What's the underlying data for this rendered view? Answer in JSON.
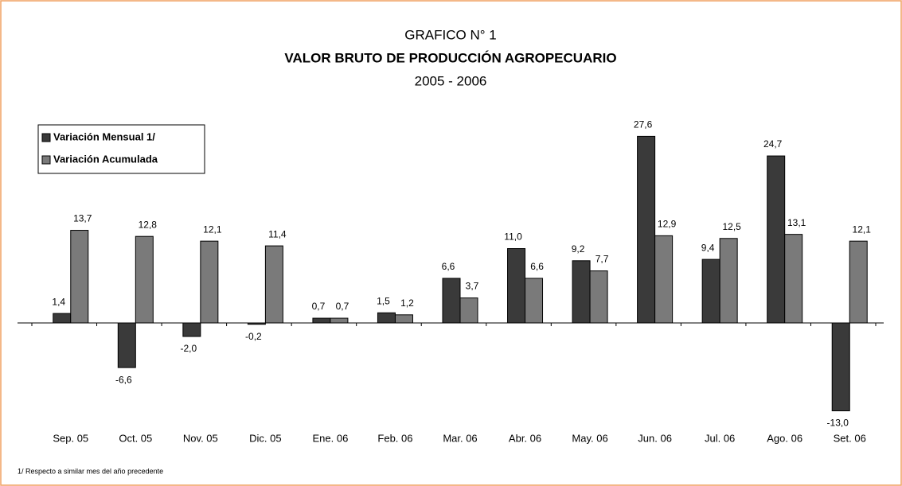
{
  "chart_data": {
    "type": "bar",
    "title": "GRAFICO N° 1",
    "subtitle": "VALOR BRUTO DE PRODUCCIÓN AGROPECUARIO",
    "period": "2005 - 2006",
    "footnote": "1/ Respecto a similar mes del año precedente",
    "categories": [
      "Sep. 05",
      "Oct. 05",
      "Nov. 05",
      "Dic. 05",
      "Ene. 06",
      "Feb. 06",
      "Mar. 06",
      "Abr. 06",
      "May. 06",
      "Jun. 06",
      "Jul. 06",
      "Ago. 06",
      "Set. 06"
    ],
    "series": [
      {
        "name": "Variación Mensual 1/",
        "color": "#3a3a3a",
        "values": [
          1.4,
          -6.6,
          -2.0,
          -0.2,
          0.7,
          1.5,
          6.6,
          11.0,
          9.2,
          27.6,
          9.4,
          24.7,
          -13.0
        ],
        "value_labels": [
          "1,4",
          "-6,6",
          "-2,0",
          "-0,2",
          "0,7",
          "1,5",
          "6,6",
          "11,0",
          "9,2",
          "27,6",
          "9,4",
          "24,7",
          "-13,0"
        ]
      },
      {
        "name": "Variación Acumulada",
        "color": "#7a7a7a",
        "values": [
          13.7,
          12.8,
          12.1,
          11.4,
          0.7,
          1.2,
          3.7,
          6.6,
          7.7,
          12.9,
          12.5,
          13.1,
          12.1
        ],
        "value_labels": [
          "13,7",
          "12,8",
          "12,1",
          "11,4",
          "0,7",
          "1,2",
          "3,7",
          "6,6",
          "7,7",
          "12,9",
          "12,5",
          "13,1",
          "12,1"
        ]
      }
    ],
    "ylim": [
      -15,
      30
    ],
    "legend": "top-left"
  }
}
